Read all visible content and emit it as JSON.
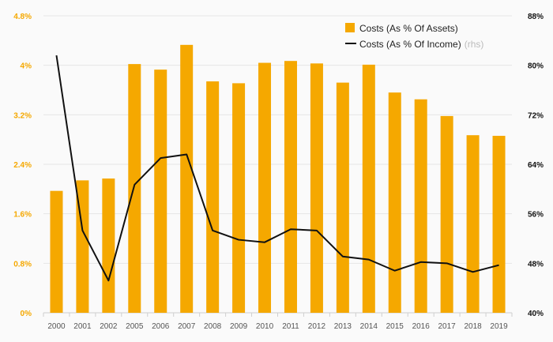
{
  "chart_data": {
    "type": "bar+line",
    "categories": [
      "2000",
      "2001",
      "2002",
      "2005",
      "2006",
      "2007",
      "2008",
      "2009",
      "2010",
      "2011",
      "2012",
      "2013",
      "2014",
      "2015",
      "2016",
      "2017",
      "2018",
      "2019"
    ],
    "series": [
      {
        "name": "Costs (As % Of Assets)",
        "type": "bar",
        "axis": "left",
        "color": "#f5a800",
        "values": [
          1.97,
          2.14,
          2.17,
          4.02,
          3.93,
          4.33,
          3.74,
          3.71,
          4.04,
          4.07,
          4.03,
          3.72,
          4.01,
          3.56,
          3.45,
          3.18,
          2.87,
          2.86
        ]
      },
      {
        "name": "Costs (As % Of Income)",
        "name_suffix": "(rhs)",
        "type": "line",
        "axis": "right",
        "color": "#111111",
        "values": [
          81.6,
          53.3,
          45.2,
          60.7,
          65.0,
          65.6,
          53.3,
          51.8,
          51.4,
          53.5,
          53.3,
          49.1,
          48.6,
          46.8,
          48.2,
          48.0,
          46.6,
          47.7
        ]
      }
    ],
    "y_left": {
      "min": 0,
      "max": 4.8,
      "ticks": [
        "0%",
        "0.8%",
        "1.6%",
        "2.4%",
        "3.2%",
        "4%",
        "4.8%"
      ]
    },
    "y_right": {
      "min": 40,
      "max": 88,
      "ticks": [
        "40%",
        "48%",
        "56%",
        "64%",
        "72%",
        "80%",
        "88%"
      ]
    },
    "grid": true,
    "legend": "top-right"
  }
}
